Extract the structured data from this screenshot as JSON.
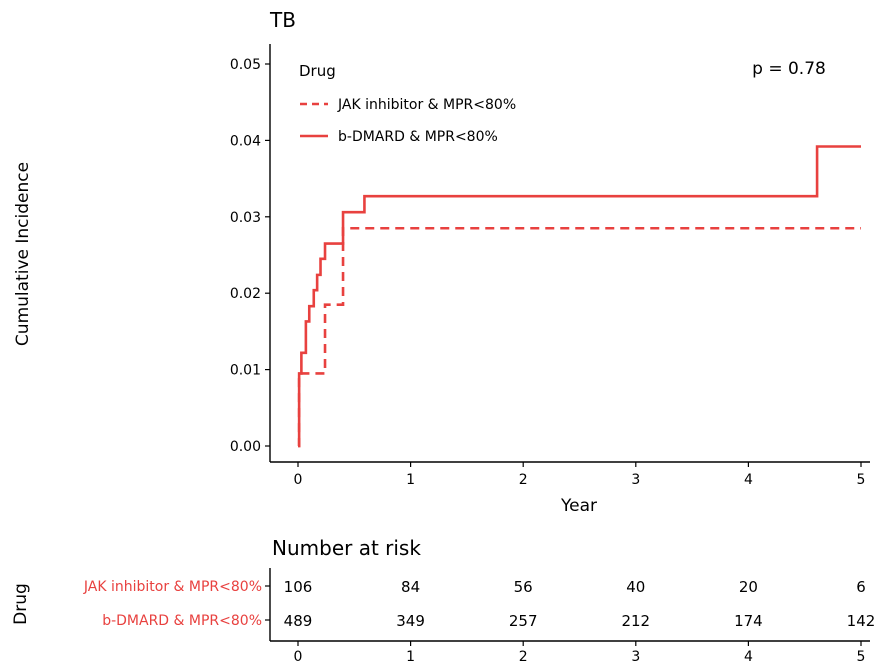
{
  "chart_data": [
    {
      "type": "line",
      "subtype": "kaplan-meier cumulative incidence (step)",
      "title": "TB",
      "xlabel": "Year",
      "ylabel": "Cumulative Incidence",
      "xlim": [
        0,
        5
      ],
      "ylim": [
        0,
        0.05
      ],
      "x_ticks": [
        "0",
        "1",
        "2",
        "3",
        "4",
        "5"
      ],
      "y_ticks": [
        "0.00",
        "0.01",
        "0.02",
        "0.03",
        "0.04",
        "0.05"
      ],
      "annotation": "p = 0.78",
      "legend": {
        "title": "Drug",
        "position": "top-left",
        "entries": [
          "JAK inhibitor & MPR<80%",
          "b-DMARD & MPR<80%"
        ]
      },
      "grid": false,
      "series": [
        {
          "name": "JAK inhibitor & MPR<80%",
          "line_style": "dashed",
          "color": "#e8413f",
          "x": [
            0,
            0.01,
            0.24,
            0.4,
            5.0
          ],
          "y": [
            0,
            0.0095,
            0.0185,
            0.0285,
            0.0285
          ]
        },
        {
          "name": "b-DMARD & MPR<80%",
          "line_style": "solid",
          "color": "#e8413f",
          "x": [
            0,
            0.01,
            0.03,
            0.07,
            0.1,
            0.14,
            0.17,
            0.2,
            0.24,
            0.4,
            0.59,
            4.61,
            5.0
          ],
          "y": [
            0,
            0.0095,
            0.0122,
            0.0163,
            0.0183,
            0.0204,
            0.0224,
            0.0245,
            0.0265,
            0.0306,
            0.0327,
            0.0392,
            0.0392
          ]
        }
      ]
    },
    {
      "type": "table",
      "title": "Number at risk",
      "ylabel": "Drug",
      "x_ticks": [
        "0",
        "1",
        "2",
        "3",
        "4",
        "5"
      ],
      "rows": [
        {
          "name": "JAK inhibitor & MPR<80%",
          "color": "#e8413f",
          "values": [
            "106",
            "84",
            "56",
            "40",
            "20",
            "6"
          ]
        },
        {
          "name": "b-DMARD & MPR<80%",
          "color": "#e8413f",
          "values": [
            "489",
            "349",
            "257",
            "212",
            "174",
            "142"
          ]
        }
      ]
    }
  ]
}
